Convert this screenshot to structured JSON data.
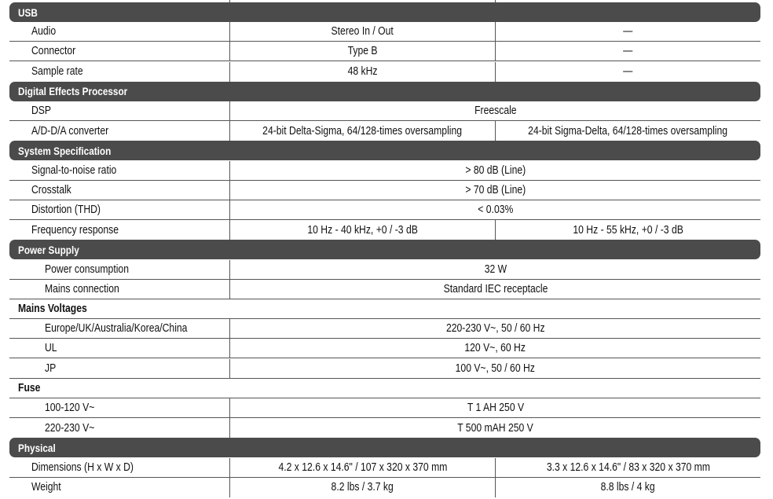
{
  "colors": {
    "header_bar": "#4b4b4b",
    "rule": "#555555"
  },
  "rows": [
    {
      "type": "header",
      "label": "USB"
    },
    {
      "type": "row",
      "indent": 1,
      "label": "Audio",
      "values": [
        "Stereo In / Out",
        "—"
      ]
    },
    {
      "type": "row",
      "indent": 1,
      "label": "Connector",
      "values": [
        "Type B",
        "—"
      ]
    },
    {
      "type": "row",
      "indent": 1,
      "label": "Sample rate",
      "values": [
        "48 kHz",
        "—"
      ]
    },
    {
      "type": "header",
      "label": "Digital Effects Processor"
    },
    {
      "type": "row",
      "indent": 1,
      "label": "DSP",
      "values": [
        "Freescale"
      ]
    },
    {
      "type": "row",
      "indent": 1,
      "label": "A/D-D/A converter",
      "values": [
        "24-bit Delta-Sigma, 64/128-times oversampling",
        "24-bit Sigma-Delta, 64/128-times oversampling"
      ]
    },
    {
      "type": "header",
      "label": "System Specification"
    },
    {
      "type": "row",
      "indent": 1,
      "label": "Signal-to-noise ratio",
      "values": [
        "> 80 dB (Line)"
      ]
    },
    {
      "type": "row",
      "indent": 1,
      "label": "Crosstalk",
      "values": [
        "> 70 dB (Line)"
      ]
    },
    {
      "type": "row",
      "indent": 1,
      "label": "Distortion (THD)",
      "values": [
        "< 0.03%"
      ]
    },
    {
      "type": "row",
      "indent": 1,
      "label": "Frequency response",
      "values": [
        "10 Hz - 40 kHz, +0 / -3 dB",
        "10 Hz - 55 kHz, +0 / -3 dB"
      ]
    },
    {
      "type": "header",
      "label": "Power Supply"
    },
    {
      "type": "row",
      "indent": 2,
      "label": "Power consumption",
      "values": [
        "32 W"
      ]
    },
    {
      "type": "row",
      "indent": 2,
      "label": "Mains connection",
      "values": [
        "Standard IEC receptacle"
      ]
    },
    {
      "type": "section",
      "label": "Mains Voltages"
    },
    {
      "type": "row",
      "indent": 2,
      "label": "Europe/UK/Australia/Korea/China",
      "values": [
        "220-230 V~, 50 / 60 Hz"
      ]
    },
    {
      "type": "row",
      "indent": 2,
      "label": "UL",
      "values": [
        "120 V~, 60 Hz"
      ]
    },
    {
      "type": "row",
      "indent": 2,
      "label": "JP",
      "values": [
        "100 V~, 50 / 60 Hz"
      ]
    },
    {
      "type": "section",
      "label": "Fuse"
    },
    {
      "type": "row",
      "indent": 2,
      "label": "100-120 V~",
      "values": [
        "T 1 AH 250 V"
      ]
    },
    {
      "type": "row",
      "indent": 2,
      "label": "220-230 V~",
      "values": [
        "T 500 mAH 250 V"
      ]
    },
    {
      "type": "header",
      "label": "Physical"
    },
    {
      "type": "row",
      "indent": 1,
      "label": "Dimensions (H x W x D)",
      "values": [
        "4.2 x 12.6 x 14.6\" / 107 x 320 x 370 mm",
        "3.3 x 12.6 x 14.6\" / 83 x 320 x 370 mm"
      ]
    },
    {
      "type": "row",
      "indent": 1,
      "label": "Weight",
      "values": [
        "8.2 lbs / 3.7 kg",
        "8.8 lbs / 4 kg"
      ]
    }
  ]
}
